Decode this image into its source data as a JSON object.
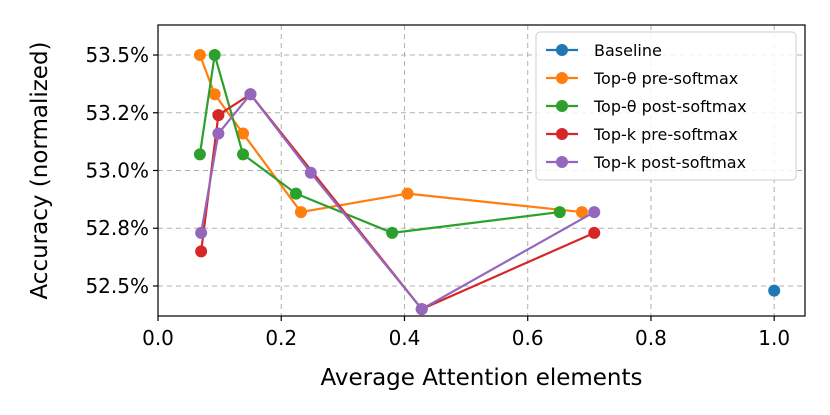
{
  "chart_data": {
    "type": "line",
    "title": "",
    "xlabel": "Average Attention elements",
    "ylabel": "Accuracy (normalized)",
    "xlim": [
      0.0,
      1.05
    ],
    "ylim": [
      52.37,
      53.63
    ],
    "xticks": [
      0.0,
      0.2,
      0.4,
      0.6,
      0.8,
      1.0
    ],
    "xtick_labels": [
      "0.0",
      "0.2",
      "0.4",
      "0.6",
      "0.8",
      "1.0"
    ],
    "yticks": [
      52.5,
      52.75,
      53.0,
      53.25,
      53.5
    ],
    "ytick_labels": [
      "52.5%",
      "52.8%",
      "53.0%",
      "53.2%",
      "53.5%"
    ],
    "grid": true,
    "legend_position": "top-right",
    "series": [
      {
        "name": "Baseline",
        "color": "#1f77b4",
        "points": [
          [
            1.0,
            52.48
          ]
        ]
      },
      {
        "name": "Top-θ pre-softmax",
        "color": "#ff7f0e",
        "points": [
          [
            0.068,
            53.5
          ],
          [
            0.092,
            53.33
          ],
          [
            0.138,
            53.16
          ],
          [
            0.232,
            52.82
          ],
          [
            0.405,
            52.9
          ],
          [
            0.688,
            52.82
          ]
        ]
      },
      {
        "name": "Top-θ post-softmax",
        "color": "#2ca02c",
        "points": [
          [
            0.068,
            53.07
          ],
          [
            0.092,
            53.5
          ],
          [
            0.138,
            53.07
          ],
          [
            0.224,
            52.9
          ],
          [
            0.38,
            52.73
          ],
          [
            0.652,
            52.82
          ]
        ]
      },
      {
        "name": "Top-k pre-softmax",
        "color": "#d62728",
        "points": [
          [
            0.07,
            52.65
          ],
          [
            0.098,
            53.24
          ],
          [
            0.15,
            53.33
          ],
          [
            0.428,
            52.4
          ],
          [
            0.708,
            52.73
          ]
        ]
      },
      {
        "name": "Top-k post-softmax",
        "color": "#9467bd",
        "points": [
          [
            0.07,
            52.73
          ],
          [
            0.098,
            53.16
          ],
          [
            0.15,
            53.33
          ],
          [
            0.248,
            52.99
          ],
          [
            0.428,
            52.4
          ],
          [
            0.708,
            52.82
          ]
        ]
      }
    ]
  }
}
